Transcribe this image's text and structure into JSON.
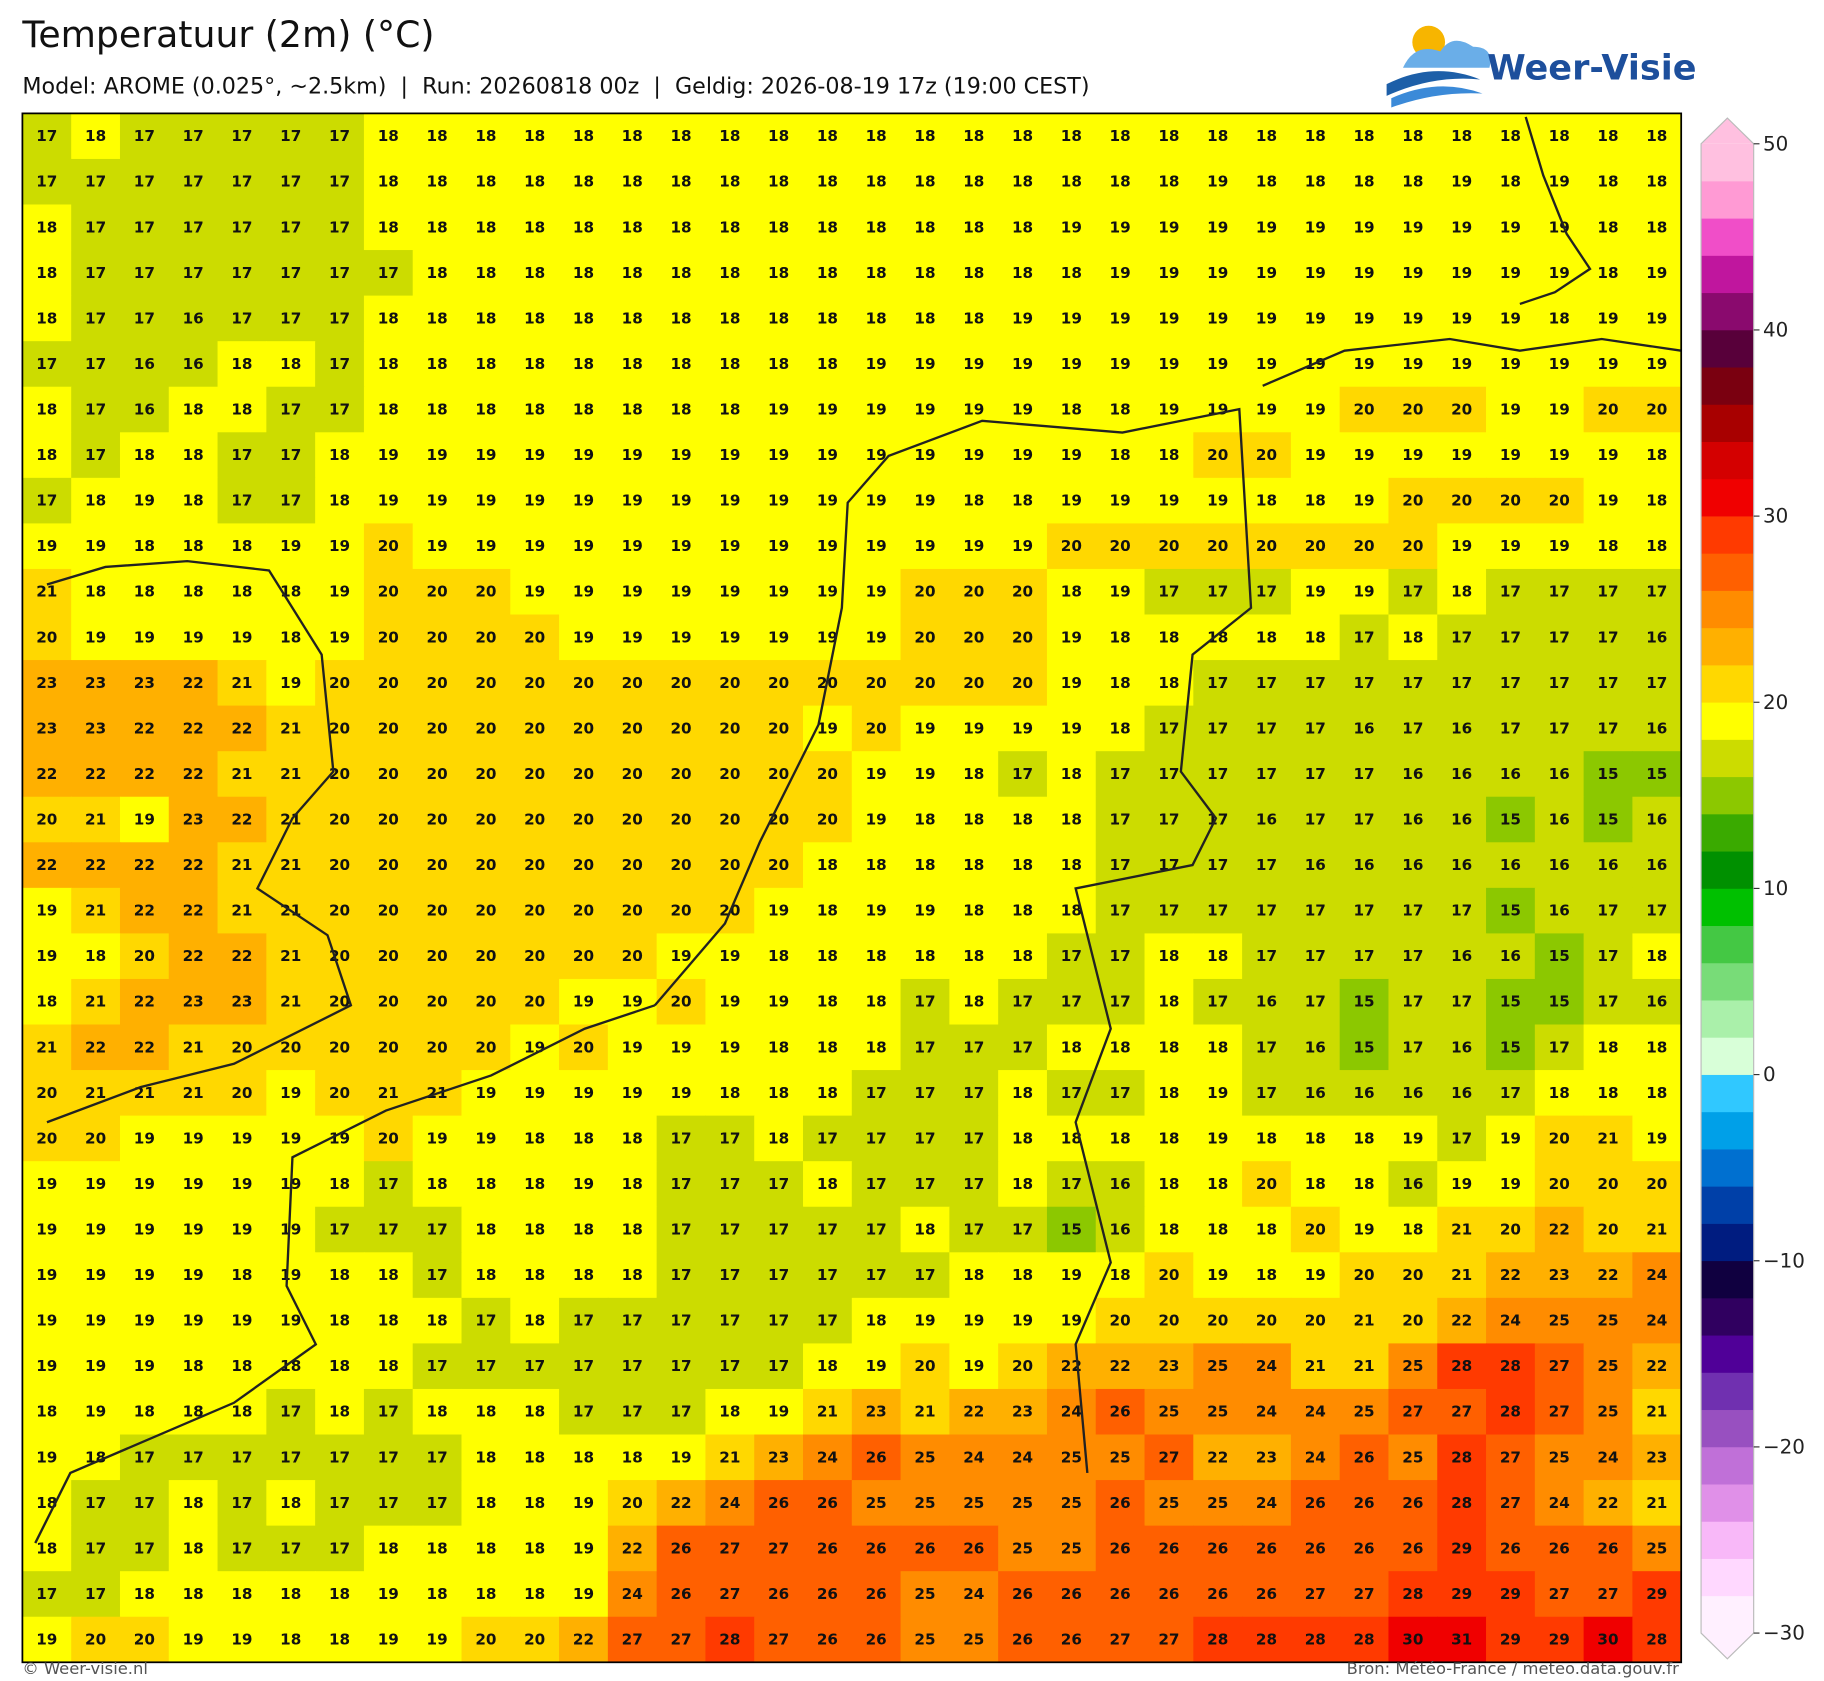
{
  "header": {
    "title": "Temperatuur (2m) (°C)",
    "subtitle": "Model: AROME (0.025°, ~2.5km)  |  Run: 20260818 00z  |  Geldig: 2026-08-19 17z (19:00 CEST)"
  },
  "logo": "Weer-Visie",
  "map": {
    "rows": [
      [
        17,
        18,
        17,
        17,
        17,
        17,
        17,
        18,
        18,
        18,
        18,
        18,
        18,
        18,
        18,
        18,
        18,
        18,
        18,
        18,
        18,
        18,
        18,
        18,
        18,
        18,
        18,
        18,
        18,
        18,
        18,
        18,
        18,
        18
      ],
      [
        17,
        17,
        17,
        17,
        17,
        17,
        17,
        18,
        18,
        18,
        18,
        18,
        18,
        18,
        18,
        18,
        18,
        18,
        18,
        18,
        18,
        18,
        18,
        18,
        19,
        18,
        18,
        18,
        18,
        19,
        18,
        19,
        18,
        18
      ],
      [
        18,
        17,
        17,
        17,
        17,
        17,
        17,
        18,
        18,
        18,
        18,
        18,
        18,
        18,
        18,
        18,
        18,
        18,
        18,
        18,
        18,
        19,
        19,
        19,
        19,
        19,
        19,
        19,
        19,
        19,
        19,
        19,
        18,
        18
      ],
      [
        18,
        17,
        17,
        17,
        17,
        17,
        17,
        17,
        18,
        18,
        18,
        18,
        18,
        18,
        18,
        18,
        18,
        18,
        18,
        18,
        18,
        18,
        19,
        19,
        19,
        19,
        19,
        19,
        19,
        19,
        19,
        19,
        18,
        19
      ],
      [
        18,
        17,
        17,
        16,
        17,
        17,
        17,
        18,
        18,
        18,
        18,
        18,
        18,
        18,
        18,
        18,
        18,
        18,
        18,
        18,
        19,
        19,
        19,
        19,
        19,
        19,
        19,
        19,
        19,
        19,
        19,
        18,
        19,
        19
      ],
      [
        17,
        17,
        16,
        16,
        18,
        18,
        17,
        18,
        18,
        18,
        18,
        18,
        18,
        18,
        18,
        18,
        18,
        19,
        19,
        19,
        19,
        19,
        19,
        19,
        19,
        19,
        19,
        19,
        19,
        19,
        19,
        19,
        19,
        19
      ],
      [
        18,
        17,
        16,
        18,
        18,
        17,
        17,
        18,
        18,
        18,
        18,
        18,
        18,
        18,
        18,
        19,
        19,
        19,
        19,
        19,
        19,
        18,
        18,
        19,
        19,
        19,
        19,
        20,
        20,
        20,
        19,
        19,
        20,
        20
      ],
      [
        18,
        17,
        18,
        18,
        17,
        17,
        18,
        19,
        19,
        19,
        19,
        19,
        19,
        19,
        19,
        19,
        19,
        19,
        19,
        19,
        19,
        19,
        18,
        18,
        20,
        20,
        19,
        19,
        19,
        19,
        19,
        19,
        19,
        18
      ],
      [
        17,
        18,
        19,
        18,
        17,
        17,
        18,
        19,
        19,
        19,
        19,
        19,
        19,
        19,
        19,
        19,
        19,
        19,
        19,
        18,
        18,
        19,
        19,
        19,
        19,
        18,
        18,
        19,
        20,
        20,
        20,
        20,
        19,
        18
      ],
      [
        19,
        19,
        18,
        18,
        18,
        19,
        19,
        20,
        19,
        19,
        19,
        19,
        19,
        19,
        19,
        19,
        19,
        19,
        19,
        19,
        19,
        20,
        20,
        20,
        20,
        20,
        20,
        20,
        20,
        19,
        19,
        19,
        18,
        18
      ],
      [
        21,
        18,
        18,
        18,
        18,
        18,
        19,
        20,
        20,
        20,
        19,
        19,
        19,
        19,
        19,
        19,
        19,
        19,
        20,
        20,
        20,
        18,
        19,
        17,
        17,
        17,
        19,
        19,
        17,
        18,
        17,
        17,
        17,
        17
      ],
      [
        20,
        19,
        19,
        19,
        19,
        18,
        19,
        20,
        20,
        20,
        20,
        19,
        19,
        19,
        19,
        19,
        19,
        19,
        20,
        20,
        20,
        19,
        18,
        18,
        18,
        18,
        18,
        17,
        18,
        17,
        17,
        17,
        17,
        16
      ],
      [
        23,
        23,
        23,
        22,
        21,
        19,
        20,
        20,
        20,
        20,
        20,
        20,
        20,
        20,
        20,
        20,
        20,
        20,
        20,
        20,
        20,
        19,
        18,
        18,
        17,
        17,
        17,
        17,
        17,
        17,
        17,
        17,
        17,
        17
      ],
      [
        23,
        23,
        22,
        22,
        22,
        21,
        20,
        20,
        20,
        20,
        20,
        20,
        20,
        20,
        20,
        20,
        19,
        20,
        19,
        19,
        19,
        19,
        18,
        17,
        17,
        17,
        17,
        16,
        17,
        16,
        17,
        17,
        17,
        16
      ],
      [
        22,
        22,
        22,
        22,
        21,
        21,
        20,
        20,
        20,
        20,
        20,
        20,
        20,
        20,
        20,
        20,
        20,
        19,
        19,
        18,
        17,
        18,
        17,
        17,
        17,
        17,
        17,
        17,
        16,
        16,
        16,
        16,
        15,
        15
      ],
      [
        20,
        21,
        19,
        23,
        22,
        21,
        20,
        20,
        20,
        20,
        20,
        20,
        20,
        20,
        20,
        20,
        20,
        19,
        18,
        18,
        18,
        18,
        17,
        17,
        17,
        16,
        17,
        17,
        16,
        16,
        15,
        16,
        15,
        16
      ],
      [
        22,
        22,
        22,
        22,
        21,
        21,
        20,
        20,
        20,
        20,
        20,
        20,
        20,
        20,
        20,
        20,
        18,
        18,
        18,
        18,
        18,
        18,
        17,
        17,
        17,
        17,
        16,
        16,
        16,
        16,
        16,
        16,
        16,
        16
      ],
      [
        19,
        21,
        22,
        22,
        21,
        21,
        20,
        20,
        20,
        20,
        20,
        20,
        20,
        20,
        20,
        19,
        18,
        19,
        19,
        18,
        18,
        18,
        17,
        17,
        17,
        17,
        17,
        17,
        17,
        17,
        15,
        16,
        17,
        17
      ],
      [
        19,
        18,
        20,
        22,
        22,
        21,
        20,
        20,
        20,
        20,
        20,
        20,
        20,
        19,
        19,
        18,
        18,
        18,
        18,
        18,
        18,
        17,
        17,
        18,
        18,
        17,
        17,
        17,
        17,
        16,
        16,
        15,
        17,
        18
      ],
      [
        18,
        21,
        22,
        23,
        23,
        21,
        20,
        20,
        20,
        20,
        20,
        19,
        19,
        20,
        19,
        19,
        18,
        18,
        17,
        18,
        17,
        17,
        17,
        18,
        17,
        16,
        17,
        15,
        17,
        17,
        15,
        15,
        17,
        16
      ],
      [
        21,
        22,
        22,
        21,
        20,
        20,
        20,
        20,
        20,
        20,
        19,
        20,
        19,
        19,
        19,
        18,
        18,
        18,
        17,
        17,
        17,
        18,
        18,
        18,
        18,
        17,
        16,
        15,
        17,
        16,
        15,
        17,
        18,
        18
      ],
      [
        20,
        21,
        21,
        21,
        20,
        19,
        20,
        21,
        21,
        19,
        19,
        19,
        19,
        19,
        18,
        18,
        18,
        17,
        17,
        17,
        18,
        17,
        17,
        18,
        19,
        17,
        16,
        16,
        16,
        16,
        17,
        18,
        18,
        18
      ],
      [
        20,
        20,
        19,
        19,
        19,
        19,
        19,
        20,
        19,
        19,
        18,
        18,
        18,
        17,
        17,
        18,
        17,
        17,
        17,
        17,
        18,
        18,
        18,
        18,
        19,
        18,
        18,
        18,
        19,
        17,
        19,
        20,
        21,
        19
      ],
      [
        19,
        19,
        19,
        19,
        19,
        19,
        18,
        17,
        18,
        18,
        18,
        19,
        18,
        17,
        17,
        17,
        18,
        17,
        17,
        17,
        18,
        17,
        16,
        18,
        18,
        20,
        18,
        18,
        16,
        19,
        19,
        20,
        20,
        20
      ],
      [
        19,
        19,
        19,
        19,
        19,
        19,
        17,
        17,
        17,
        18,
        18,
        18,
        18,
        17,
        17,
        17,
        17,
        17,
        18,
        17,
        17,
        15,
        16,
        18,
        18,
        18,
        20,
        19,
        18,
        21,
        20,
        22,
        20,
        21
      ],
      [
        19,
        19,
        19,
        19,
        18,
        19,
        18,
        18,
        17,
        18,
        18,
        18,
        18,
        17,
        17,
        17,
        17,
        17,
        17,
        18,
        18,
        19,
        18,
        20,
        19,
        18,
        19,
        20,
        20,
        21,
        22,
        23,
        22,
        24
      ],
      [
        19,
        19,
        19,
        19,
        19,
        19,
        18,
        18,
        18,
        17,
        18,
        17,
        17,
        17,
        17,
        17,
        17,
        18,
        19,
        19,
        19,
        19,
        20,
        20,
        20,
        20,
        20,
        21,
        20,
        22,
        24,
        25,
        25,
        24
      ],
      [
        19,
        19,
        19,
        18,
        18,
        18,
        18,
        18,
        17,
        17,
        17,
        17,
        17,
        17,
        17,
        17,
        18,
        19,
        20,
        19,
        20,
        22,
        22,
        23,
        25,
        24,
        21,
        21,
        25,
        28,
        28,
        27,
        25,
        22
      ],
      [
        18,
        19,
        18,
        18,
        18,
        17,
        18,
        17,
        18,
        18,
        18,
        17,
        17,
        17,
        18,
        19,
        21,
        23,
        21,
        22,
        23,
        24,
        26,
        25,
        25,
        24,
        24,
        25,
        27,
        27,
        28,
        27,
        25,
        21
      ],
      [
        19,
        18,
        17,
        17,
        17,
        17,
        17,
        17,
        17,
        18,
        18,
        18,
        18,
        19,
        21,
        23,
        24,
        26,
        25,
        24,
        24,
        25,
        25,
        27,
        22,
        23,
        24,
        26,
        25,
        28,
        27,
        25,
        24,
        23
      ],
      [
        18,
        17,
        17,
        18,
        17,
        18,
        17,
        17,
        17,
        18,
        18,
        19,
        20,
        22,
        24,
        26,
        26,
        25,
        25,
        25,
        25,
        25,
        26,
        25,
        25,
        24,
        26,
        26,
        26,
        28,
        27,
        24,
        22,
        21
      ],
      [
        18,
        17,
        17,
        18,
        17,
        17,
        17,
        18,
        18,
        18,
        18,
        19,
        22,
        26,
        27,
        27,
        26,
        26,
        26,
        26,
        25,
        25,
        26,
        26,
        26,
        26,
        26,
        26,
        26,
        29,
        26,
        26,
        26,
        25
      ],
      [
        17,
        17,
        18,
        18,
        18,
        18,
        18,
        19,
        18,
        18,
        18,
        19,
        24,
        26,
        27,
        26,
        26,
        26,
        25,
        24,
        26,
        26,
        26,
        26,
        26,
        26,
        27,
        27,
        28,
        29,
        29,
        27,
        27,
        29
      ],
      [
        19,
        20,
        20,
        19,
        19,
        18,
        18,
        19,
        19,
        20,
        20,
        22,
        27,
        27,
        28,
        27,
        26,
        26,
        25,
        25,
        26,
        26,
        27,
        27,
        28,
        28,
        28,
        28,
        30,
        31,
        29,
        29,
        30,
        28
      ]
    ]
  },
  "colorbar": {
    "lim": [
      -30,
      50
    ],
    "ticks": [
      {
        "value": -30,
        "label": "−30"
      },
      {
        "value": -20,
        "label": "−20"
      },
      {
        "value": -10,
        "label": "−10"
      },
      0,
      10,
      20,
      30,
      40,
      50
    ],
    "colors": [
      "#fff0ff",
      "#ffd8ff",
      "#f8b8f8",
      "#e090e8",
      "#c070d8",
      "#9850c0",
      "#7030b0",
      "#500098",
      "#300060",
      "#100040",
      "#001c80",
      "#0040a8",
      "#0070d0",
      "#00a0e8",
      "#30c8ff",
      "#d8ffd8",
      "#aaf0aa",
      "#78dc78",
      "#44c844",
      "#00c000",
      "#009000",
      "#3aaa00",
      "#8cc800",
      "#ccdc00",
      "#ffff00",
      "#ffd800",
      "#ffb000",
      "#ff8c00",
      "#ff6000",
      "#ff3a00",
      "#f00000",
      "#d40000",
      "#a80000",
      "#7a0010",
      "#58003a",
      "#8a0a6e",
      "#c0169e",
      "#f04ec8",
      "#ff9ad4",
      "#ffc0e0"
    ]
  },
  "footer": {
    "left": "© Weer-visie.nl",
    "right": "Bron: Météo-France / meteo.data.gouv.fr"
  }
}
